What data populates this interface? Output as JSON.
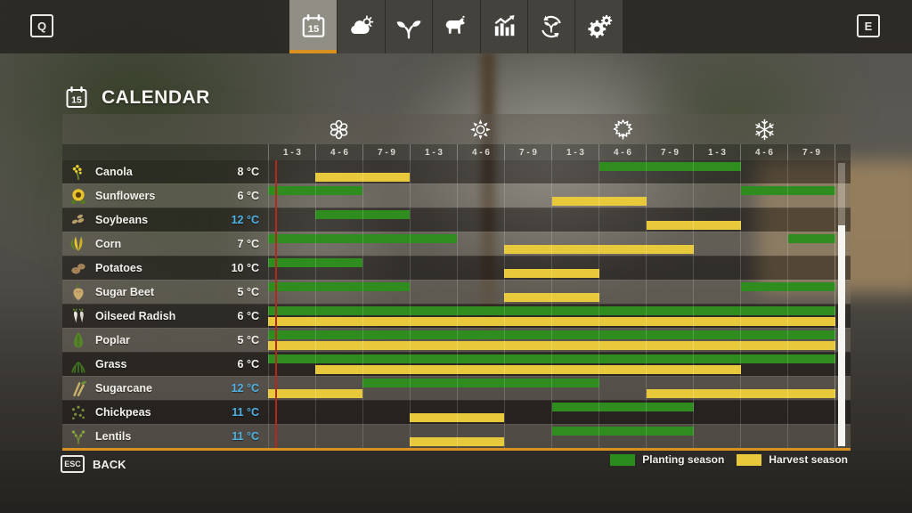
{
  "topbar": {
    "left_hotkey": "Q",
    "right_hotkey": "E",
    "tabs": [
      {
        "id": "calendar",
        "icon": "calendar-icon",
        "badge": "15",
        "active": true
      },
      {
        "id": "weather",
        "icon": "weather-icon",
        "active": false
      },
      {
        "id": "crops",
        "icon": "plant-icon",
        "active": false
      },
      {
        "id": "animals",
        "icon": "cow-icon",
        "active": false
      },
      {
        "id": "statistics",
        "icon": "statistics-icon",
        "active": false
      },
      {
        "id": "crop-rotation",
        "icon": "rotation-icon",
        "active": false
      },
      {
        "id": "settings",
        "icon": "gears-icon",
        "active": false
      }
    ]
  },
  "page": {
    "title": "CALENDAR",
    "title_icon": "calendar-icon",
    "title_icon_badge": "15"
  },
  "calendar": {
    "seasons": [
      {
        "id": "spring",
        "icon": "flower-icon"
      },
      {
        "id": "summer",
        "icon": "sun-icon"
      },
      {
        "id": "autumn",
        "icon": "maple-leaf-icon"
      },
      {
        "id": "winter",
        "icon": "snowflake-icon"
      }
    ],
    "period_labels": [
      "1 - 3",
      "4 - 6",
      "7 - 9",
      "1 - 3",
      "4 - 6",
      "7 - 9",
      "1 - 3",
      "4 - 6",
      "7 - 9",
      "1 - 3",
      "4 - 6",
      "7 - 9"
    ],
    "columns_total": 12,
    "current_date_line": {
      "year_fraction": 0.012
    },
    "crops": [
      {
        "name": "Canola",
        "icon": "canola-icon",
        "temperature": "8 °C",
        "temperature_highlight": false,
        "planting_cols": [
          [
            8,
            10
          ]
        ],
        "harvest_cols": [
          [
            2,
            3
          ]
        ]
      },
      {
        "name": "Sunflowers",
        "icon": "sunflower-icon",
        "temperature": "6 °C",
        "temperature_highlight": false,
        "planting_cols": [
          [
            1,
            2
          ],
          [
            11,
            12
          ]
        ],
        "harvest_cols": [
          [
            7,
            8
          ]
        ]
      },
      {
        "name": "Soybeans",
        "icon": "soybeans-icon",
        "temperature": "12 °C",
        "temperature_highlight": true,
        "planting_cols": [
          [
            2,
            3
          ]
        ],
        "harvest_cols": [
          [
            9,
            10
          ]
        ]
      },
      {
        "name": "Corn",
        "icon": "corn-icon",
        "temperature": "7 °C",
        "temperature_highlight": false,
        "planting_cols": [
          [
            1,
            4
          ],
          [
            12,
            12
          ]
        ],
        "harvest_cols": [
          [
            6,
            9
          ]
        ]
      },
      {
        "name": "Potatoes",
        "icon": "potatoes-icon",
        "temperature": "10 °C",
        "temperature_highlight": false,
        "planting_cols": [
          [
            1,
            2
          ]
        ],
        "harvest_cols": [
          [
            6,
            7
          ]
        ]
      },
      {
        "name": "Sugar Beet",
        "icon": "sugar-beet-icon",
        "temperature": "5 °C",
        "temperature_highlight": false,
        "planting_cols": [
          [
            1,
            3
          ],
          [
            11,
            12
          ]
        ],
        "harvest_cols": [
          [
            6,
            7
          ]
        ]
      },
      {
        "name": "Oilseed Radish",
        "icon": "oilseed-radish-icon",
        "temperature": "6 °C",
        "temperature_highlight": false,
        "planting_cols": [
          [
            1,
            12
          ]
        ],
        "harvest_cols": [
          [
            1,
            12
          ]
        ]
      },
      {
        "name": "Poplar",
        "icon": "poplar-icon",
        "temperature": "5 °C",
        "temperature_highlight": false,
        "planting_cols": [
          [
            1,
            12
          ]
        ],
        "harvest_cols": [
          [
            1,
            12
          ]
        ]
      },
      {
        "name": "Grass",
        "icon": "grass-icon",
        "temperature": "6 °C",
        "temperature_highlight": false,
        "planting_cols": [
          [
            1,
            12
          ]
        ],
        "harvest_cols": [
          [
            2,
            10
          ]
        ]
      },
      {
        "name": "Sugarcane",
        "icon": "sugarcane-icon",
        "temperature": "12 °C",
        "temperature_highlight": true,
        "planting_cols": [
          [
            3,
            7
          ]
        ],
        "harvest_cols": [
          [
            1,
            2
          ],
          [
            9,
            12
          ]
        ]
      },
      {
        "name": "Chickpeas",
        "icon": "chickpeas-icon",
        "temperature": "11 °C",
        "temperature_highlight": true,
        "planting_cols": [
          [
            7,
            9
          ]
        ],
        "harvest_cols": [
          [
            4,
            5
          ]
        ]
      },
      {
        "name": "Lentils",
        "icon": "lentils-icon",
        "temperature": "11 °C",
        "temperature_highlight": true,
        "planting_cols": [
          [
            7,
            9
          ]
        ],
        "harvest_cols": [
          [
            4,
            5
          ]
        ]
      }
    ],
    "legend": [
      {
        "label": "Planting season",
        "color": "#2a8c1d"
      },
      {
        "label": "Harvest season",
        "color": "#e9c93c"
      }
    ],
    "colors": {
      "planting": "#2e8d1e",
      "harvest": "#e9c93c",
      "accent_orange": "#d9921f",
      "current_day_line": "#b5281e",
      "temperature_highlight": "#4fb2e5"
    }
  },
  "bottombar": {
    "back_hotkey": "ESC",
    "back_label": "BACK"
  }
}
